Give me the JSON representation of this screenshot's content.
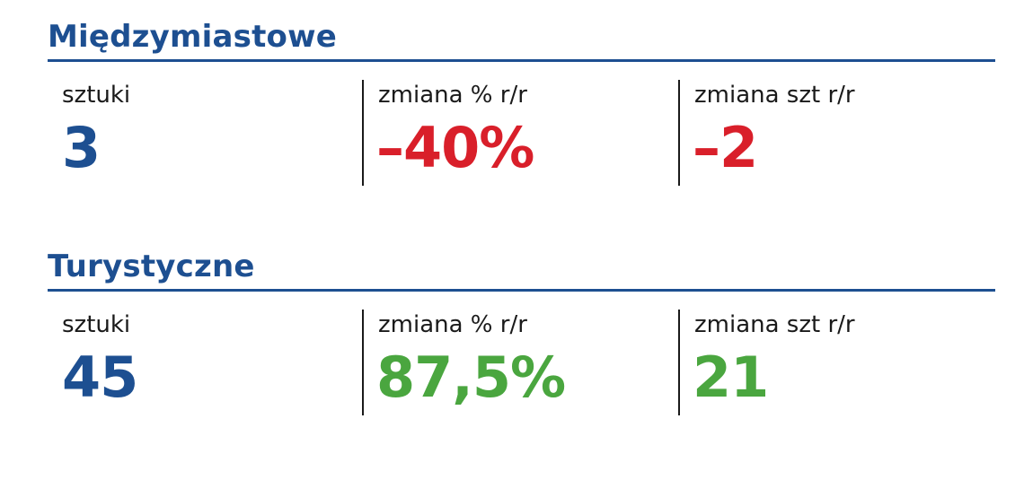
{
  "colors": {
    "heading_blue": "#1d4f91",
    "negative_red": "#d91f2a",
    "positive_green": "#4aa63f",
    "text_dark": "#1a1a1a"
  },
  "sections": [
    {
      "title": "Międzymiastowe",
      "metrics": [
        {
          "label": "sztuki",
          "value": "3"
        },
        {
          "label": "zmiana % r/r",
          "value": "–40%"
        },
        {
          "label": "zmiana szt r/r",
          "value": "–2"
        }
      ]
    },
    {
      "title": "Turystyczne",
      "metrics": [
        {
          "label": "sztuki",
          "value": "45"
        },
        {
          "label": "zmiana % r/r",
          "value": "87,5%"
        },
        {
          "label": "zmiana szt r/r",
          "value": "21"
        }
      ]
    }
  ]
}
